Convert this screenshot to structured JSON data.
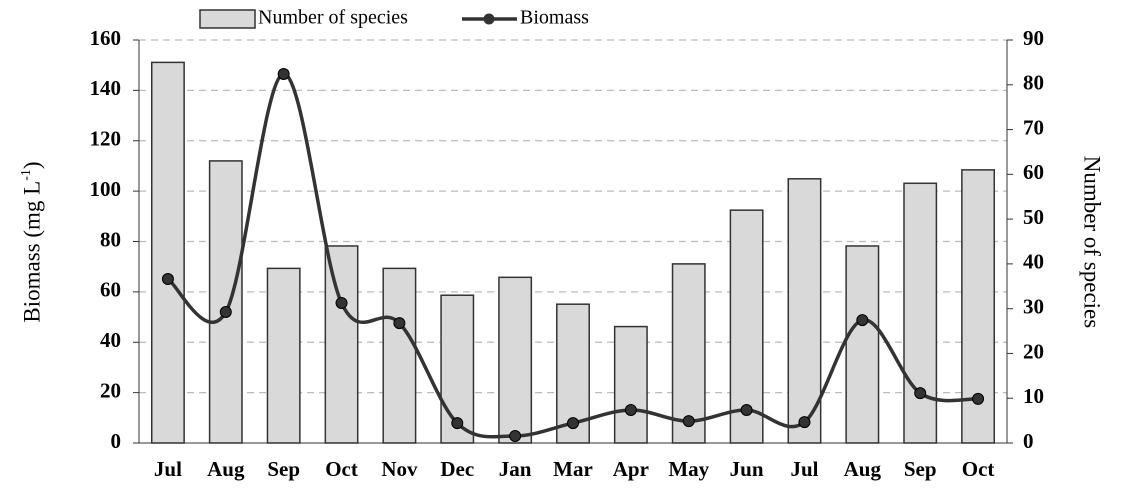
{
  "chart_data": {
    "type": "bar_line",
    "categories": [
      "Jul",
      "Aug",
      "Sep",
      "Oct",
      "Nov",
      "Dec",
      "Jan",
      "Mar",
      "Apr",
      "May",
      "Jun",
      "Jul",
      "Aug",
      "Sep",
      "Oct"
    ],
    "series": [
      {
        "name": "Number of species",
        "type": "bar",
        "axis": "y2",
        "color": "#d9d9d9",
        "values": [
          85,
          63,
          39,
          44,
          39,
          33,
          37,
          31,
          26,
          40,
          52,
          59,
          44,
          58,
          61
        ]
      },
      {
        "name": "Biomass",
        "type": "line",
        "axis": "y",
        "color": "#333333",
        "values": [
          65.1,
          52,
          146.5,
          55.6,
          47.6,
          7.9,
          2.8,
          7.9,
          13.1,
          8.7,
          13.1,
          8.3,
          48.8,
          19.8,
          17.5
        ]
      }
    ],
    "y_label": "Biomass (mg L-1)",
    "y2_label": "Number of species",
    "ylim": [
      0,
      160
    ],
    "yticks": [
      0,
      20,
      40,
      60,
      80,
      100,
      120,
      140,
      160
    ],
    "y2lim": [
      0,
      90
    ],
    "y2ticks": [
      0,
      10,
      20,
      30,
      40,
      50,
      60,
      70,
      80,
      90
    ],
    "grid": true
  }
}
